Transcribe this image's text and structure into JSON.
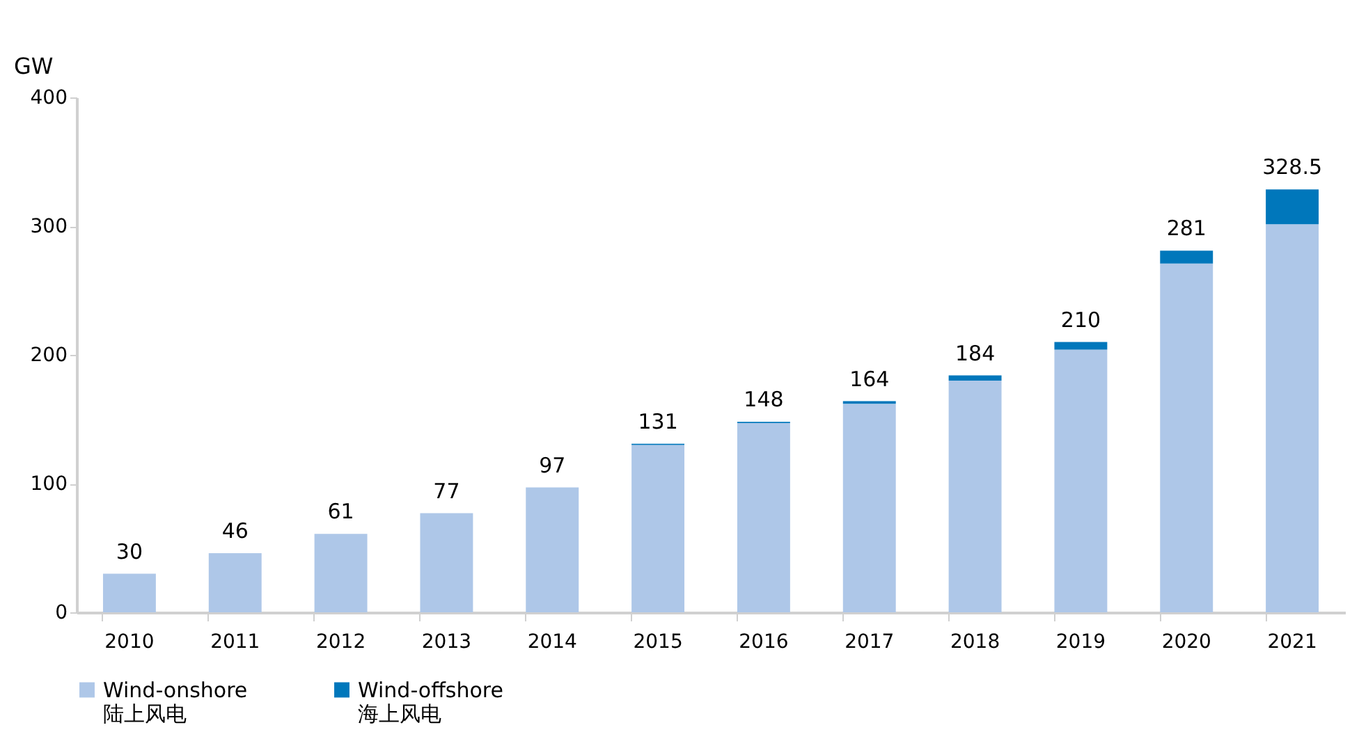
{
  "chart_data": {
    "type": "bar",
    "stacked": true,
    "ylabel": "GW",
    "categories": [
      "2010",
      "2011",
      "2012",
      "2013",
      "2014",
      "2015",
      "2016",
      "2017",
      "2018",
      "2019",
      "2020",
      "2021"
    ],
    "series": [
      {
        "name": "Wind-onshore\n陆上风电",
        "color": "#aec7e8",
        "values": [
          30,
          46,
          61,
          77,
          97,
          130,
          147,
          162,
          180,
          204,
          271,
          301.5
        ]
      },
      {
        "name": "Wind-offshore\n海上风电",
        "color": "#0077bb",
        "values": [
          0,
          0,
          0,
          0,
          0,
          1,
          1,
          2,
          4,
          6,
          10,
          27
        ]
      }
    ],
    "totals": [
      "30",
      "46",
      "61",
      "77",
      "97",
      "131",
      "148",
      "164",
      "184",
      "210",
      "281",
      "328.5"
    ],
    "ylim": [
      0,
      400
    ],
    "yticks": [
      0,
      100,
      200,
      300,
      400
    ],
    "grid": false,
    "legend": "bottom"
  }
}
